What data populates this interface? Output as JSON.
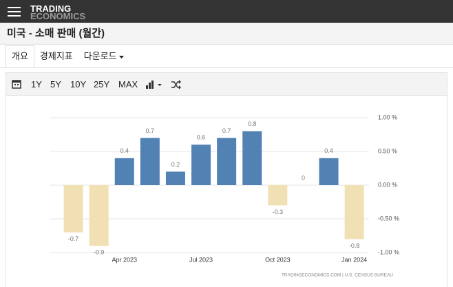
{
  "header": {
    "logo_top": "TRADING",
    "logo_bottom": "ECONOMICS",
    "title": "미국 - 소매 판매 (월간)"
  },
  "tabs": [
    "개요",
    "경제지표",
    "다운로드"
  ],
  "toolbar": [
    "1Y",
    "5Y",
    "10Y",
    "25Y",
    "MAX"
  ],
  "chart_data": {
    "type": "bar",
    "categories": [
      null,
      null,
      "Apr 2023",
      null,
      null,
      "Jul 2023",
      null,
      null,
      "Oct 2023",
      null,
      null,
      "Jan 2024"
    ],
    "values": [
      -0.7,
      -0.9,
      0.4,
      0.7,
      0.2,
      0.6,
      0.7,
      0.8,
      -0.3,
      0,
      0.4,
      -0.8
    ],
    "positive_color": "#5282b4",
    "negative_color": "#f1e0b3",
    "ylim": [
      -1,
      1
    ],
    "yticks": [
      {
        "value": 1,
        "label": "1.00 %"
      },
      {
        "value": 0.5,
        "label": "0.50 %"
      },
      {
        "value": 0,
        "label": "0.00 %"
      },
      {
        "value": -0.5,
        "label": "-0.50 %"
      },
      {
        "value": -1,
        "label": "-1.00 %"
      }
    ],
    "grid": true,
    "source": "TRADINGECONOMICS.COM  |  U.S. CENSUS BUREAU"
  }
}
